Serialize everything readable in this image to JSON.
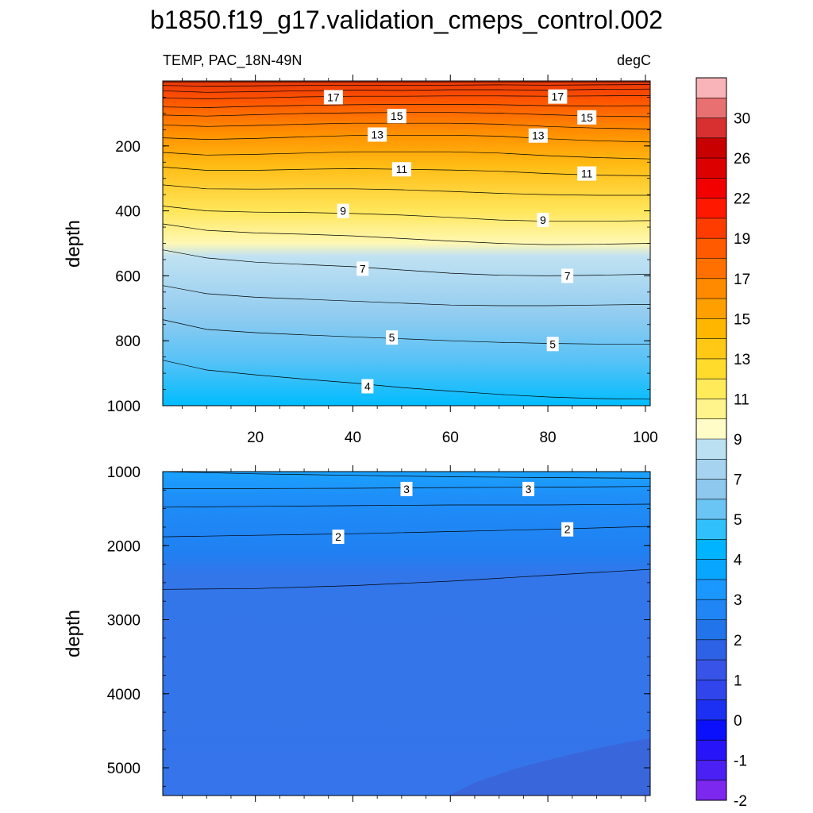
{
  "title": "b1850.f19_g17.validation_cmeps_control.002",
  "subtitle_left": "TEMP, PAC_18N-49N",
  "subtitle_right": "degC",
  "chart_data": [
    {
      "type": "contour",
      "ylabel": "depth",
      "xlim": [
        1,
        101
      ],
      "ylim": [
        0,
        1000
      ],
      "y_reversed": true,
      "x_ticks": [
        20,
        40,
        60,
        80,
        100
      ],
      "y_ticks": [
        200,
        400,
        600,
        800,
        1000
      ],
      "x": [
        1,
        10,
        20,
        30,
        40,
        50,
        60,
        70,
        80,
        90,
        101
      ],
      "contours": [
        {
          "level": 20,
          "depth": [
            3,
            3,
            3,
            3,
            3,
            3,
            3,
            3,
            3,
            3,
            3
          ]
        },
        {
          "level": 19,
          "depth": [
            14,
            16,
            15,
            14,
            13,
            14,
            13,
            12,
            13,
            12,
            11
          ]
        },
        {
          "level": 18,
          "depth": [
            30,
            35,
            33,
            30,
            28,
            29,
            27,
            27,
            28,
            26,
            25
          ]
        },
        {
          "level": 17,
          "depth": [
            52,
            55,
            52,
            49,
            47,
            47,
            46,
            46,
            47,
            46,
            45
          ]
        },
        {
          "level": 16,
          "depth": [
            80,
            82,
            78,
            75,
            73,
            72,
            72,
            73,
            76,
            77,
            76
          ]
        },
        {
          "level": 15,
          "depth": [
            105,
            108,
            104,
            100,
            98,
            97,
            97,
            99,
            104,
            108,
            110
          ]
        },
        {
          "level": 14,
          "depth": [
            135,
            140,
            137,
            133,
            130,
            130,
            130,
            133,
            140,
            145,
            148
          ]
        },
        {
          "level": 13,
          "depth": [
            175,
            180,
            177,
            172,
            168,
            167,
            167,
            170,
            178,
            184,
            188
          ]
        },
        {
          "level": 12,
          "depth": [
            220,
            228,
            226,
            222,
            218,
            218,
            218,
            222,
            230,
            236,
            240
          ]
        },
        {
          "level": 11,
          "depth": [
            265,
            275,
            275,
            272,
            270,
            272,
            274,
            278,
            285,
            290,
            292
          ]
        },
        {
          "level": 10,
          "depth": [
            320,
            332,
            333,
            332,
            332,
            335,
            340,
            346,
            350,
            352,
            352
          ]
        },
        {
          "level": 9,
          "depth": [
            385,
            400,
            404,
            405,
            408,
            413,
            420,
            428,
            432,
            432,
            430
          ]
        },
        {
          "level": 8,
          "depth": [
            440,
            460,
            468,
            472,
            477,
            485,
            493,
            500,
            504,
            503,
            500
          ]
        },
        {
          "level": 7,
          "depth": [
            520,
            545,
            558,
            565,
            572,
            582,
            592,
            598,
            600,
            598,
            595
          ]
        },
        {
          "level": 6,
          "depth": [
            630,
            655,
            666,
            672,
            678,
            684,
            690,
            692,
            692,
            690,
            688
          ]
        },
        {
          "level": 5,
          "depth": [
            735,
            765,
            775,
            782,
            788,
            794,
            800,
            805,
            808,
            810,
            810
          ]
        },
        {
          "level": 4,
          "depth": [
            860,
            890,
            905,
            918,
            930,
            944,
            955,
            965,
            973,
            978,
            980
          ]
        }
      ],
      "contour_labels": [
        {
          "text": "17",
          "x": 36,
          "depth": 50
        },
        {
          "text": "17",
          "x": 82,
          "depth": 48
        },
        {
          "text": "15",
          "x": 49,
          "depth": 108
        },
        {
          "text": "15",
          "x": 88,
          "depth": 112
        },
        {
          "text": "13",
          "x": 45,
          "depth": 165
        },
        {
          "text": "13",
          "x": 78,
          "depth": 168
        },
        {
          "text": "11",
          "x": 50,
          "depth": 272
        },
        {
          "text": "11",
          "x": 88,
          "depth": 285
        },
        {
          "text": "9",
          "x": 38,
          "depth": 400
        },
        {
          "text": "9",
          "x": 79,
          "depth": 428
        },
        {
          "text": "7",
          "x": 42,
          "depth": 578
        },
        {
          "text": "7",
          "x": 84,
          "depth": 600
        },
        {
          "text": "5",
          "x": 48,
          "depth": 790
        },
        {
          "text": "5",
          "x": 81,
          "depth": 810
        },
        {
          "text": "4",
          "x": 43,
          "depth": 940
        }
      ]
    },
    {
      "type": "contour",
      "ylabel": "depth",
      "xlim": [
        1,
        101
      ],
      "ylim": [
        1000,
        5375
      ],
      "y_reversed": true,
      "y_ticks": [
        1000,
        2000,
        3000,
        4000,
        5000
      ],
      "x": [
        1,
        20,
        40,
        60,
        80,
        101
      ],
      "contours": [
        {
          "level": 4,
          "depth": [
            1000,
            1030,
            1050,
            1070,
            1080,
            1090
          ]
        },
        {
          "level": 3,
          "depth": [
            1230,
            1230,
            1225,
            1215,
            1210,
            1200
          ]
        },
        {
          "level": 2.5,
          "depth": [
            1480,
            1470,
            1460,
            1450,
            1450,
            1440
          ]
        },
        {
          "level": 2,
          "depth": [
            1880,
            1860,
            1840,
            1810,
            1780,
            1740
          ]
        },
        {
          "level": 1.5,
          "depth": [
            2590,
            2580,
            2540,
            2480,
            2400,
            2320
          ]
        }
      ],
      "contour_labels": [
        {
          "text": "3",
          "x": 51,
          "depth": 1235
        },
        {
          "text": "3",
          "x": 76,
          "depth": 1235
        },
        {
          "text": "2",
          "x": 37,
          "depth": 1880
        },
        {
          "text": "2",
          "x": 84,
          "depth": 1780
        }
      ]
    }
  ],
  "colorbar": {
    "colors": [
      "#f8b4b8",
      "#e87070",
      "#d83030",
      "#c80000",
      "#dc0000",
      "#f20000",
      "#ff1800",
      "#ff3c00",
      "#ff5a00",
      "#ff7000",
      "#ff8a00",
      "#ffa000",
      "#ffb600",
      "#ffc814",
      "#ffdc2c",
      "#ffeb5a",
      "#fff48c",
      "#fffcc8",
      "#bae0f2",
      "#a6d4f0",
      "#8ec8ee",
      "#6ac4f4",
      "#30c0fc",
      "#00b4ff",
      "#08a6ff",
      "#1a98ff",
      "#2086f6",
      "#2274ea",
      "#2e62e6",
      "#3854e8",
      "#3046ec",
      "#1c30f4",
      "#0a10fc",
      "#2814f8",
      "#4a20f4",
      "#7c28ee"
    ],
    "labels": [
      "30",
      "26",
      "22",
      "19",
      "17",
      "15",
      "13",
      "11",
      "9",
      "7",
      "5",
      "4",
      "3",
      "2",
      "1",
      "0",
      "-1",
      "-2"
    ]
  }
}
